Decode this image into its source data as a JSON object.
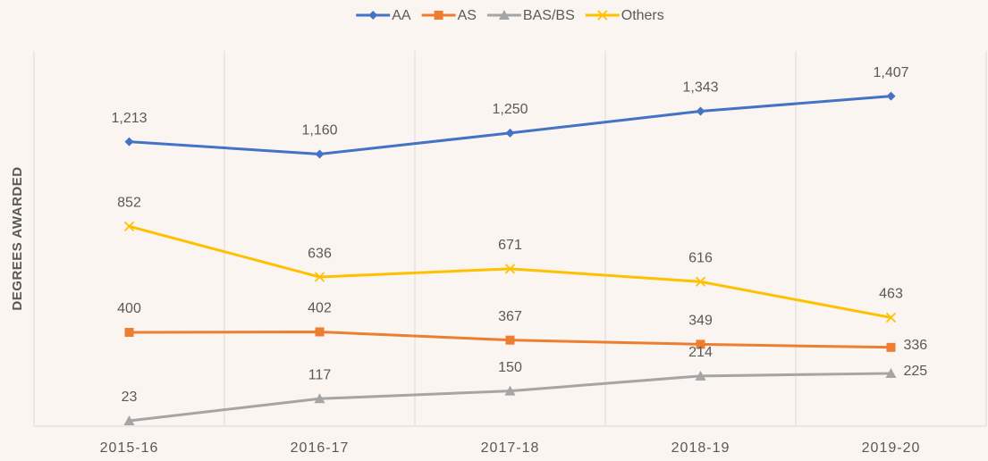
{
  "chart_data": {
    "type": "line",
    "categories": [
      "2015-16",
      "2016-17",
      "2017-18",
      "2018-19",
      "2019-20"
    ],
    "y_label": "DEGREES AWARDED",
    "ylim": [
      0,
      1600
    ],
    "legend": "top",
    "series": [
      {
        "name": "AA",
        "color": "#4472c4",
        "marker": "diamond",
        "values": [
          1213,
          1160,
          1250,
          1343,
          1407
        ],
        "value_labels": [
          "1,213",
          "1,160",
          "1,250",
          "1,343",
          "1,407"
        ]
      },
      {
        "name": "AS",
        "color": "#ed7d31",
        "marker": "square",
        "values": [
          400,
          402,
          367,
          349,
          336
        ]
      },
      {
        "name": "BAS/BS",
        "color": "#a5a5a5",
        "marker": "triangle",
        "values": [
          23,
          117,
          150,
          214,
          225
        ]
      },
      {
        "name": "Others",
        "color": "#ffc000",
        "marker": "x",
        "values": [
          852,
          636,
          671,
          616,
          463
        ]
      }
    ]
  }
}
